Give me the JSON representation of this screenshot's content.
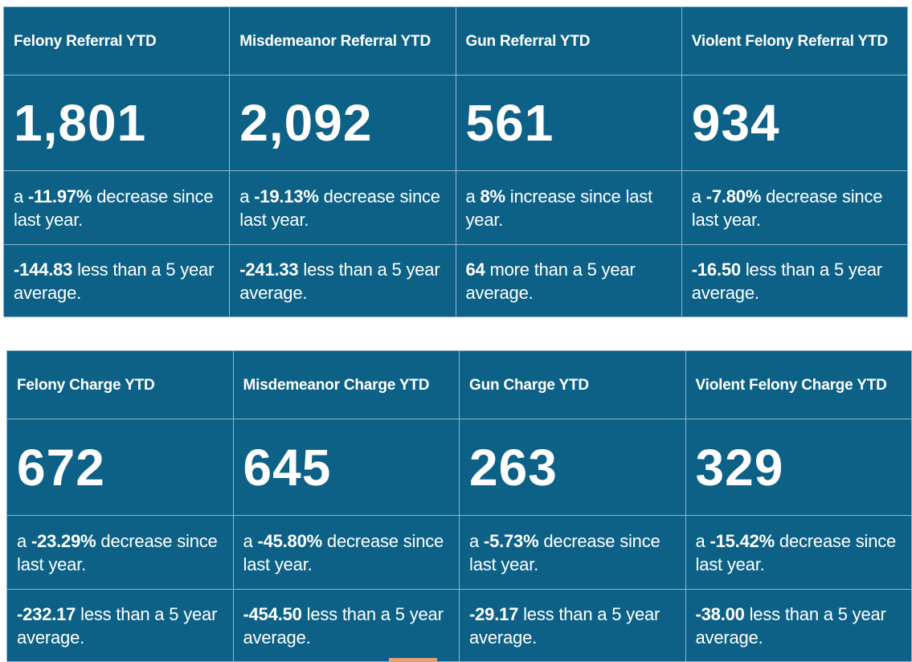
{
  "referral": {
    "cards": [
      {
        "title": "Felony Referral YTD",
        "value": "1,801",
        "change_prefix": "a ",
        "change_value": "-11.97%",
        "change_suffix": " decrease since last year.",
        "avg_value": "-144.83",
        "avg_suffix": " less than a 5 year average."
      },
      {
        "title": "Misdemeanor Referral YTD",
        "value": "2,092",
        "change_prefix": "a ",
        "change_value": "-19.13%",
        "change_suffix": " decrease since last year.",
        "avg_value": "-241.33",
        "avg_suffix": " less than a 5 year average."
      },
      {
        "title": "Gun Referral YTD",
        "value": "561",
        "change_prefix": "a ",
        "change_value": "8%",
        "change_suffix": " increase since last year.",
        "avg_value": "64",
        "avg_suffix": " more than a 5 year average."
      },
      {
        "title": "Violent Felony Referral YTD",
        "value": "934",
        "change_prefix": "a ",
        "change_value": "-7.80%",
        "change_suffix": " decrease since last year.",
        "avg_value": "-16.50",
        "avg_suffix": " less than a 5 year average."
      }
    ]
  },
  "charge": {
    "cards": [
      {
        "title": "Felony Charge YTD",
        "value": "672",
        "change_prefix": "a ",
        "change_value": "-23.29%",
        "change_suffix": " decrease since last year.",
        "avg_value": "-232.17",
        "avg_suffix": " less than a 5 year average."
      },
      {
        "title": "Misdemeanor Charge YTD",
        "value": "645",
        "change_prefix": "a ",
        "change_value": "-45.80%",
        "change_suffix": " decrease since last year.",
        "avg_value": "-454.50",
        "avg_suffix": " less than a 5 year average."
      },
      {
        "title": "Gun Charge YTD",
        "value": "263",
        "change_prefix": "a ",
        "change_value": "-5.73%",
        "change_suffix": " decrease since last year.",
        "avg_value": "-29.17",
        "avg_suffix": " less than a 5 year average."
      },
      {
        "title": "Violent Felony Charge YTD",
        "value": "329",
        "change_prefix": "a ",
        "change_value": "-15.42%",
        "change_suffix": " decrease since last year.",
        "avg_value": "-38.00",
        "avg_suffix": " less than a 5 year average."
      }
    ]
  },
  "colors": {
    "card_background": "#0d6187",
    "border": "#8fb6cc",
    "text": "#ffffff"
  }
}
